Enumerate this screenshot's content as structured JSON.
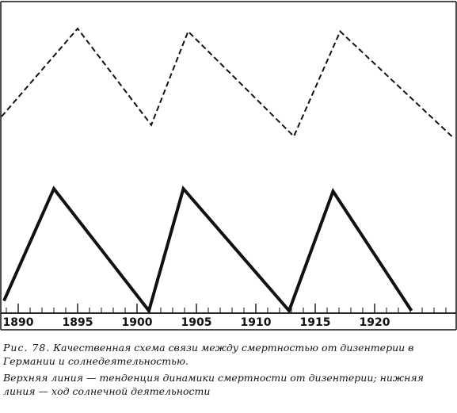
{
  "chart_data": {
    "type": "line",
    "x_ticks": [
      1890,
      1895,
      1900,
      1905,
      1910,
      1915,
      1920
    ],
    "xlim": [
      1888.6,
      1926.8
    ],
    "series": [
      {
        "style": "dashed",
        "x": [
          1888.6,
          1895.0,
          1901.2,
          1904.3,
          1913.2,
          1917.1,
          1926.5
        ],
        "y": [
          0.38,
          1.0,
          0.32,
          0.98,
          0.24,
          0.98,
          0.24
        ]
      },
      {
        "style": "solid",
        "x": [
          1888.8,
          1893.0,
          1901.0,
          1903.9,
          1912.8,
          1916.5,
          1923.1
        ],
        "y": [
          0.08,
          0.98,
          0.0,
          0.98,
          0.0,
          0.96,
          0.0
        ]
      }
    ]
  },
  "caption": {
    "label": "Рис. 78.",
    "text": "Качественная схема связи между смертностью от дизентерии в Германии и солнедеятельностью."
  },
  "note": {
    "text": "Верхняя линия — тенденция динамики смертности от дизентерии; нижняя линия — ход солнечной деятельности"
  },
  "colors": {
    "ink": "#111111",
    "background": "#ffffff"
  }
}
